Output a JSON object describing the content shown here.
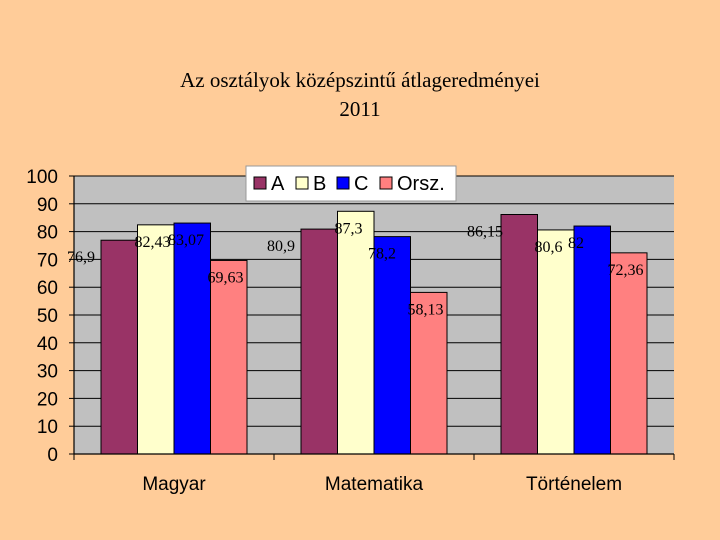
{
  "title_line1": "Az osztályok középszintű átlageredményei",
  "title_line2": "2011",
  "colors": {
    "background": "#FFCC99",
    "plot_area": "#C0C0C0",
    "grid": "#000000",
    "series": [
      "#993366",
      "#FFFFCC",
      "#0000FF",
      "#FF8080"
    ]
  },
  "chart_data": {
    "type": "bar",
    "categories": [
      "Magyar",
      "Matematika",
      "Történelem"
    ],
    "series": [
      {
        "name": "A",
        "values": [
          76.9,
          80.9,
          86.15
        ],
        "labels": [
          "76,9",
          "80,9",
          "86,15"
        ]
      },
      {
        "name": "B",
        "values": [
          82.43,
          87.3,
          80.6
        ],
        "labels": [
          "82,43",
          "87,3",
          "80,6"
        ]
      },
      {
        "name": "C",
        "values": [
          83.07,
          78.2,
          82
        ],
        "labels": [
          "83,07",
          "78,2",
          "82"
        ]
      },
      {
        "name": "Orsz.",
        "values": [
          69.63,
          58.13,
          72.36
        ],
        "labels": [
          "69,63",
          "58,13",
          "72,36"
        ]
      }
    ],
    "ylim": [
      0,
      100
    ],
    "yticks": [
      0,
      10,
      20,
      30,
      40,
      50,
      60,
      70,
      80,
      90,
      100
    ],
    "grid": true,
    "legend": "top"
  }
}
